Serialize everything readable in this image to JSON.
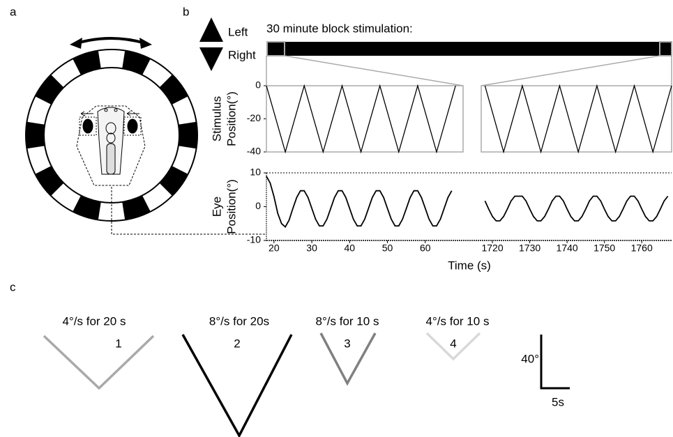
{
  "chart_data": [
    {
      "type": "line",
      "ylabel": [
        "Stimulus",
        "Position(°)"
      ],
      "ylim": [
        -40,
        0
      ],
      "yticks": [
        0,
        -20,
        -40
      ],
      "segments": [
        {
          "xlim": [
            18,
            70
          ]
        },
        {
          "xlim": [
            1717,
            1768
          ]
        }
      ],
      "series": [
        {
          "segment": 0,
          "color": "#000000",
          "x": [
            18,
            23,
            28,
            33,
            38,
            43,
            48,
            53,
            58,
            63,
            68
          ],
          "values": [
            0,
            -40,
            0,
            -40,
            0,
            -40,
            0,
            -40,
            0,
            -40,
            0
          ]
        },
        {
          "segment": 1,
          "color": "#000000",
          "x": [
            1718,
            1723,
            1728,
            1733,
            1738,
            1743,
            1748,
            1753,
            1758,
            1763,
            1768
          ],
          "values": [
            0,
            -40,
            0,
            -40,
            0,
            -40,
            0,
            -40,
            0,
            -40,
            0
          ]
        }
      ]
    },
    {
      "type": "line",
      "ylabel": [
        "Eye",
        "Position(°)"
      ],
      "xlabel": "Time (s)",
      "ylim": [
        -10,
        10
      ],
      "yticks": [
        10,
        0,
        -10
      ],
      "segments": [
        {
          "xlim": [
            18,
            70
          ],
          "xticks": [
            20,
            30,
            40,
            50,
            60
          ]
        },
        {
          "xlim": [
            1717,
            1768
          ],
          "xticks": [
            1720,
            1730,
            1740,
            1750,
            1760
          ]
        }
      ],
      "series": [
        {
          "segment": 0,
          "color": "#000000",
          "x": [
            18,
            19,
            20,
            21,
            22,
            23,
            24,
            25,
            26,
            27,
            28,
            29,
            30,
            31,
            32,
            33,
            34,
            35,
            36,
            37,
            38,
            39,
            40,
            41,
            42,
            43,
            44,
            45,
            46,
            47,
            48,
            49,
            50,
            51,
            52,
            53,
            54,
            55,
            56,
            57,
            58,
            59,
            60,
            61,
            62,
            63,
            64,
            65,
            66,
            67
          ],
          "values": [
            9,
            7,
            3,
            -2,
            -5,
            -6,
            -4,
            -0.5,
            2.7,
            4.7,
            4.7,
            2.7,
            -0.5,
            -3.7,
            -5.7,
            -5.7,
            -3.7,
            -0.5,
            2.7,
            4.7,
            4.7,
            2.7,
            -0.5,
            -3.7,
            -5.7,
            -5.7,
            -3.7,
            -0.5,
            2.7,
            4.7,
            4.7,
            2.7,
            -0.5,
            -3.7,
            -5.7,
            -5.7,
            -3.7,
            -0.5,
            2.7,
            4.7,
            4.7,
            2.7,
            -0.5,
            -3.7,
            -5.7,
            -5.7,
            -3.7,
            -0.5,
            2.7,
            4.7
          ]
        },
        {
          "segment": 1,
          "color": "#000000",
          "x": [
            1718,
            1719,
            1720,
            1721,
            1722,
            1723,
            1724,
            1725,
            1726,
            1727,
            1728,
            1729,
            1730,
            1731,
            1732,
            1733,
            1734,
            1735,
            1736,
            1737,
            1738,
            1739,
            1740,
            1741,
            1742,
            1743,
            1744,
            1745,
            1746,
            1747,
            1748,
            1749,
            1750,
            1751,
            1752,
            1753,
            1754,
            1755,
            1756,
            1757,
            1758,
            1759,
            1760,
            1761,
            1762,
            1763,
            1764,
            1765,
            1766,
            1767
          ],
          "values": [
            1.7,
            -0.7,
            -2.9,
            -4.2,
            -4.2,
            -2.9,
            -0.7,
            1.7,
            3.1,
            3.1,
            3.1,
            1.7,
            -0.7,
            -2.9,
            -4.2,
            -4.2,
            -2.9,
            -0.7,
            1.7,
            3.1,
            3.1,
            1.7,
            -0.7,
            -2.9,
            -4.2,
            -4.2,
            -2.9,
            -0.7,
            1.7,
            3.1,
            3.1,
            1.7,
            -0.7,
            -2.9,
            -4.2,
            -4.2,
            -2.9,
            -0.7,
            1.7,
            3.1,
            3.1,
            1.7,
            -0.7,
            -2.9,
            -4.2,
            -4.2,
            -2.9,
            -0.7,
            1.7,
            3.1
          ]
        }
      ]
    }
  ],
  "figure": {
    "panel_labels": [
      "a",
      "b",
      "c"
    ],
    "legend": {
      "left": "Left",
      "right": "Right"
    },
    "block_title": "30 minute block stimulation:",
    "profiles": [
      {
        "label": "4°/s for 20 s",
        "number": "1",
        "color": "#a9a9a9"
      },
      {
        "label": "8°/s for 20s",
        "number": "2",
        "color": "#000000"
      },
      {
        "label": "8°/s for 10 s",
        "number": "3",
        "color": "#808080"
      },
      {
        "label": "4°/s for 10 s",
        "number": "4",
        "color": "#d9d9d9"
      }
    ],
    "scale_bar": {
      "vertical": "40°",
      "horizontal": "5s"
    }
  }
}
